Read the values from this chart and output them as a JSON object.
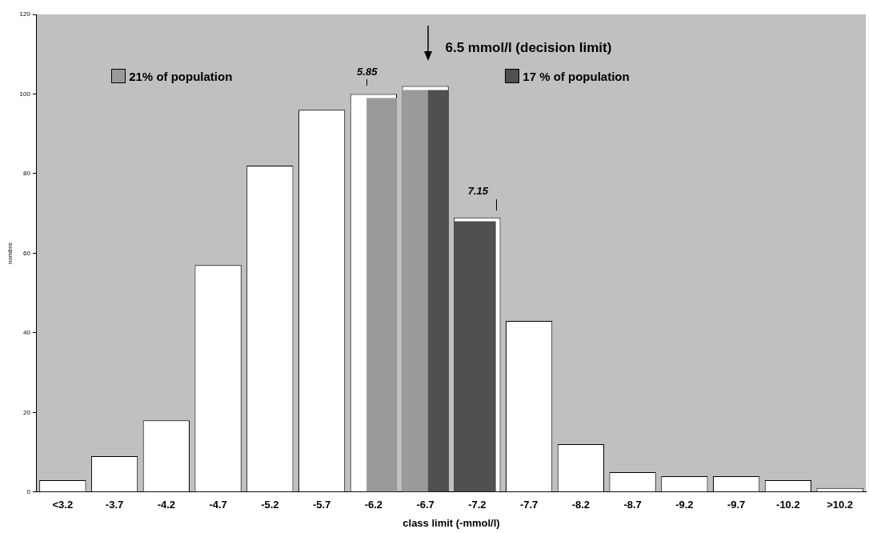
{
  "chart_data": {
    "type": "bar",
    "xlabel": "class limit (-mmol/l)",
    "ylabel": "nombre",
    "categories": [
      "<3.2",
      "-3.7",
      "-4.2",
      "-4.7",
      "-5.2",
      "-5.7",
      "-6.2",
      "-6.7",
      "-7.2",
      "-7.7",
      "-8.2",
      "-8.7",
      "-9.2",
      "-9.7",
      "-10.2",
      ">10.2"
    ],
    "series": [
      {
        "color": "#ffffff",
        "values": [
          3,
          9,
          18,
          57,
          82,
          96,
          100,
          102,
          69,
          43,
          12,
          5,
          4,
          4,
          3,
          1
        ]
      },
      {
        "name": "21% of population",
        "color": "#9a9a9a",
        "values": [
          null,
          null,
          null,
          null,
          null,
          null,
          99,
          101,
          null,
          null,
          null,
          null,
          null,
          null,
          null,
          null
        ]
      },
      {
        "name": "17 % of population",
        "color": "#505050",
        "values": [
          null,
          null,
          null,
          null,
          null,
          null,
          null,
          101,
          68,
          null,
          null,
          null,
          null,
          null,
          null,
          null
        ]
      }
    ],
    "ylim": [
      0,
      120
    ],
    "yticks": [
      0,
      20,
      40,
      60,
      80,
      100,
      120
    ],
    "grid": false,
    "legend": "top",
    "annotations": [
      "6.5 mmol/l (decision limit)",
      "5.85",
      "7.15"
    ]
  }
}
